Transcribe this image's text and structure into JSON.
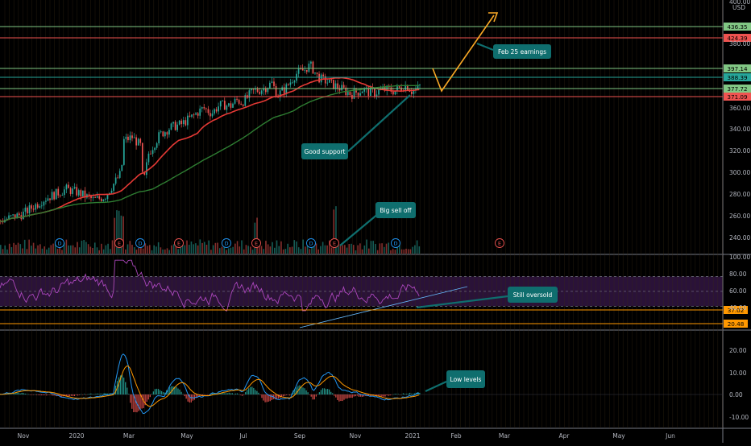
{
  "currency_label": "USD",
  "colors": {
    "background": "#000000",
    "grid": "#3a2a14",
    "axis_text": "#b2b5be",
    "candle_up": "#26a69a",
    "candle_down": "#ef5350",
    "ma_fast": "#e53935",
    "ma_slow": "#2e7d32",
    "projection": "#f9a825",
    "rsi": "#ab47bc",
    "rsi_band": "#2a1238",
    "macd": "#2196f3",
    "signal": "#ff9800",
    "callout_fill": "#0f6e6e",
    "callout_text": "#ffffff"
  },
  "chart_data": {
    "type": "candlestick",
    "x_ticks": [
      "Nov",
      "2020",
      "Mar",
      "May",
      "Jul",
      "Sep",
      "Nov",
      "2021",
      "Feb",
      "Mar",
      "Apr",
      "May",
      "Jun"
    ],
    "price": {
      "y_ticks": [
        "400.00",
        "380.00",
        "360.00",
        "340.00",
        "320.00",
        "300.00",
        "280.00",
        "260.00",
        "240.00"
      ],
      "ylim": [
        228,
        432
      ],
      "approx_close_path": [
        [
          0,
          256
        ],
        [
          8,
          262
        ],
        [
          16,
          276
        ],
        [
          24,
          285
        ],
        [
          28,
          282
        ],
        [
          34,
          275
        ],
        [
          38,
          278
        ],
        [
          44,
          300
        ],
        [
          45,
          330
        ],
        [
          48,
          333
        ],
        [
          51,
          325
        ],
        [
          52,
          288
        ],
        [
          54,
          318
        ],
        [
          58,
          335
        ],
        [
          62,
          342
        ],
        [
          66,
          345
        ],
        [
          70,
          352
        ],
        [
          74,
          360
        ],
        [
          77,
          355
        ],
        [
          80,
          363
        ],
        [
          84,
          362
        ],
        [
          86,
          368
        ],
        [
          88,
          365
        ],
        [
          92,
          375
        ],
        [
          96,
          378
        ],
        [
          99,
          383
        ],
        [
          101,
          372
        ],
        [
          104,
          378
        ],
        [
          108,
          392
        ],
        [
          111,
          396
        ],
        [
          113,
          400
        ],
        [
          116,
          388
        ],
        [
          120,
          383
        ],
        [
          124,
          378
        ],
        [
          128,
          373
        ],
        [
          132,
          377
        ],
        [
          136,
          374
        ],
        [
          140,
          377
        ],
        [
          144,
          376
        ],
        [
          148,
          381
        ],
        [
          150,
          376
        ],
        [
          152,
          377
        ],
        [
          153,
          380
        ]
      ],
      "horizontal_levels": [
        {
          "value": 436.35,
          "label": "436.35",
          "color": "#81c784"
        },
        {
          "value": 424.39,
          "label": "424.39",
          "color": "#ef5350"
        },
        {
          "value": 397.14,
          "label": "397.14",
          "color": "#81c784"
        },
        {
          "value": 388.39,
          "label": "388.39",
          "color": "#26a69a"
        },
        {
          "value": 377.72,
          "label": "377.72",
          "color": "#81c784"
        },
        {
          "value": 371.09,
          "label": "371.09",
          "color": "#ef5350"
        }
      ],
      "projection_path": [
        [
          156,
          397
        ],
        [
          160,
          377
        ],
        [
          178,
          438
        ]
      ],
      "event_markers": [
        {
          "t": 21,
          "label": "D"
        },
        {
          "t": 43,
          "label": "E"
        },
        {
          "t": 51,
          "label": "D"
        },
        {
          "t": 65,
          "label": "E"
        },
        {
          "t": 82,
          "label": "D"
        },
        {
          "t": 93,
          "label": "E"
        },
        {
          "t": 113,
          "label": "D"
        },
        {
          "t": 122,
          "label": "E"
        },
        {
          "t": 144,
          "label": "D"
        },
        {
          "t": 182,
          "label": "E"
        }
      ]
    },
    "rsi": {
      "y_ticks": [
        "100.00",
        "80.00",
        "60.00",
        "40.00"
      ],
      "ylim": [
        0,
        100
      ],
      "levels": [
        {
          "value": 37.02,
          "label": "37.02"
        },
        {
          "value": 20.48,
          "label": "20.48"
        }
      ]
    },
    "macd": {
      "y_ticks": [
        "20.00",
        "10.00",
        "0.00",
        "-10.00"
      ],
      "ylim": [
        -14,
        26
      ]
    },
    "annotations": [
      "Feb 25 earnings",
      "Good support",
      "Big sell off",
      "Still oversold",
      "Low levels"
    ]
  }
}
